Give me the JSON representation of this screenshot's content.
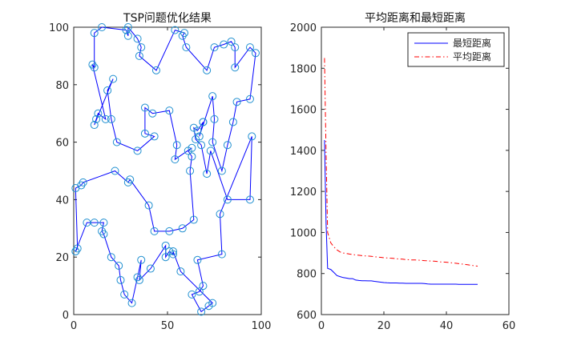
{
  "colors": {
    "tour_line": "#0000ff",
    "city_marker": "#1f8fd0",
    "best_line": "#0000ff",
    "avg_line": "#ff0000",
    "axes": "#262626",
    "background": "#ffffff"
  },
  "chart_data": [
    {
      "type": "scatter",
      "title": "TSP问题优化结果",
      "xlabel": "",
      "ylabel": "",
      "xlim": [
        0,
        100
      ],
      "ylim": [
        0,
        100
      ],
      "xticks": [
        0,
        50,
        100
      ],
      "yticks": [
        0,
        20,
        40,
        60,
        80,
        100
      ],
      "grid": false,
      "series": [
        {
          "points": [
            [
              1,
              22
            ],
            [
              2,
              23
            ],
            [
              1,
              44
            ],
            [
              4,
              45
            ],
            [
              5,
              46
            ],
            [
              22,
              50
            ],
            [
              29,
              46
            ],
            [
              30,
              47
            ],
            [
              40,
              38
            ],
            [
              43,
              29
            ],
            [
              51,
              29
            ],
            [
              58,
              30
            ],
            [
              64,
              33
            ],
            [
              62,
              50
            ],
            [
              63,
              55
            ],
            [
              61,
              57
            ],
            [
              63,
              58
            ],
            [
              54,
              54
            ],
            [
              55,
              59
            ],
            [
              51,
              71
            ],
            [
              42,
              70
            ],
            [
              38,
              72
            ],
            [
              38,
              63
            ],
            [
              43,
              62
            ],
            [
              34,
              57
            ],
            [
              23,
              60
            ],
            [
              20,
              68
            ],
            [
              18,
              78
            ],
            [
              21,
              82
            ],
            [
              11,
              66
            ],
            [
              12,
              68
            ],
            [
              13,
              70
            ],
            [
              17,
              68
            ],
            [
              10,
              87
            ],
            [
              11,
              86
            ],
            [
              11,
              98
            ],
            [
              15,
              100
            ],
            [
              28,
              99
            ],
            [
              29,
              97
            ],
            [
              29,
              100
            ],
            [
              34,
              96
            ],
            [
              36,
              93
            ],
            [
              35,
              90
            ],
            [
              44,
              85
            ],
            [
              54,
              99
            ],
            [
              59,
              98
            ],
            [
              58,
              97
            ],
            [
              60,
              93
            ],
            [
              71,
              85
            ],
            [
              75,
              93
            ],
            [
              80,
              94
            ],
            [
              84,
              95
            ],
            [
              86,
              93
            ],
            [
              86,
              86
            ],
            [
              94,
              93
            ],
            [
              97,
              91
            ],
            [
              94,
              75
            ],
            [
              87,
              74
            ],
            [
              85,
              67
            ],
            [
              82,
              59
            ],
            [
              79,
              50
            ],
            [
              74,
              60
            ],
            [
              75,
              68
            ],
            [
              74,
              76
            ],
            [
              67,
              62
            ],
            [
              69,
              67
            ],
            [
              69,
              67
            ],
            [
              66,
              64
            ],
            [
              64,
              65
            ],
            [
              65,
              61
            ],
            [
              68,
              59
            ],
            [
              71,
              49
            ],
            [
              73,
              57
            ],
            [
              82,
              40
            ],
            [
              94,
              40
            ],
            [
              95,
              62
            ],
            [
              78,
              35
            ],
            [
              79,
              21
            ],
            [
              66,
              19
            ],
            [
              69,
              10
            ],
            [
              67,
              8
            ],
            [
              63,
              7
            ],
            [
              68,
              1
            ],
            [
              72,
              3
            ],
            [
              74,
              4
            ],
            [
              57,
              15
            ],
            [
              53,
              22
            ],
            [
              53,
              21
            ],
            [
              51,
              22
            ],
            [
              49,
              20
            ],
            [
              49,
              24
            ],
            [
              41,
              16
            ],
            [
              35,
              12
            ],
            [
              36,
              19
            ],
            [
              34,
              13
            ],
            [
              31,
              4
            ],
            [
              27,
              7
            ],
            [
              25,
              12
            ],
            [
              24,
              17
            ],
            [
              20,
              20
            ],
            [
              16,
              28
            ],
            [
              15,
              29
            ],
            [
              16,
              32
            ],
            [
              11,
              32
            ],
            [
              7,
              32
            ],
            [
              1,
              22
            ]
          ]
        }
      ]
    },
    {
      "type": "line",
      "title": "平均距离和最短距离",
      "xlabel": "",
      "ylabel": "",
      "xlim": [
        0,
        60
      ],
      "ylim": [
        600,
        2000
      ],
      "xticks": [
        0,
        20,
        40,
        60
      ],
      "yticks": [
        600,
        800,
        1000,
        1200,
        1400,
        1600,
        1800,
        2000
      ],
      "grid": false,
      "legend_position": "top-right",
      "series": [
        {
          "name": "最短距离",
          "style": "solid",
          "x": [
            1,
            1.5,
            2,
            3,
            4,
            5,
            6,
            7,
            8,
            9,
            10,
            11,
            12,
            13,
            14,
            15,
            16,
            17,
            18,
            19,
            20,
            21,
            22,
            23,
            24,
            25,
            26,
            27,
            28,
            29,
            30,
            31,
            32,
            33,
            34,
            35,
            36,
            37,
            38,
            39,
            40,
            41,
            42,
            43,
            44,
            45,
            46,
            47,
            48,
            49,
            50
          ],
          "y": [
            1450,
            1040,
            825,
            820,
            805,
            790,
            785,
            780,
            778,
            775,
            775,
            768,
            766,
            765,
            765,
            764,
            764,
            762,
            760,
            758,
            756,
            755,
            754,
            754,
            754,
            753,
            753,
            752,
            752,
            752,
            752,
            752,
            752,
            751,
            749,
            748,
            748,
            748,
            748,
            748,
            748,
            748,
            748,
            748,
            747,
            747,
            747,
            747,
            747,
            747,
            747
          ]
        },
        {
          "name": "平均距离",
          "style": "dashdot",
          "x": [
            1,
            1.5,
            2,
            3,
            4,
            5,
            6,
            7,
            8,
            9,
            10,
            11,
            12,
            13,
            14,
            15,
            16,
            17,
            18,
            19,
            20,
            21,
            22,
            23,
            24,
            25,
            26,
            27,
            28,
            29,
            30,
            31,
            32,
            33,
            34,
            35,
            36,
            37,
            38,
            39,
            40,
            41,
            42,
            43,
            44,
            45,
            46,
            47,
            48,
            49,
            50
          ],
          "y": [
            1850,
            1380,
            1000,
            950,
            930,
            915,
            905,
            900,
            898,
            895,
            893,
            890,
            889,
            887,
            886,
            885,
            884,
            882,
            880,
            879,
            877,
            876,
            875,
            874,
            872,
            871,
            870,
            868,
            867,
            866,
            866,
            865,
            864,
            863,
            862,
            861,
            860,
            859,
            857,
            856,
            855,
            853,
            852,
            850,
            848,
            846,
            844,
            842,
            840,
            838,
            836
          ]
        }
      ]
    }
  ]
}
